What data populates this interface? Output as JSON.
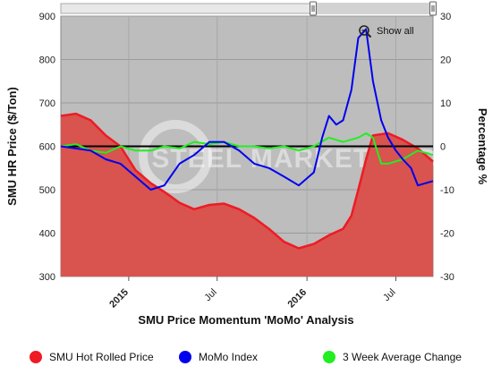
{
  "chart_data": {
    "type": "area",
    "title": "SMU Price Momentum 'MoMo' Analysis",
    "ylabel": "SMU HR Price ($/Ton)",
    "y2label": "Percentage %",
    "ylim": [
      300,
      900
    ],
    "y2lim": [
      -30,
      30
    ],
    "yticks": [
      "300",
      "400",
      "500",
      "600",
      "700",
      "800",
      "900"
    ],
    "y2ticks": [
      "-30",
      "-20",
      "-10",
      "0",
      "10",
      "20",
      "30"
    ],
    "x_range": [
      "2014-08-15",
      "2016-09-15"
    ],
    "xticks": [
      {
        "date": "2015-01-01",
        "label": "2015",
        "bold": true
      },
      {
        "date": "2015-07-01",
        "label": "Jul",
        "bold": false
      },
      {
        "date": "2016-01-01",
        "label": "2016",
        "bold": true
      },
      {
        "date": "2016-07-01",
        "label": "Jul",
        "bold": false
      }
    ],
    "grid": true,
    "legend_position": "bottom",
    "series": [
      {
        "name": "SMU Hot Rolled Price",
        "axis": "left",
        "color": "#ee1b24",
        "kind": "area",
        "x": [
          "2014-08-15",
          "2014-09-15",
          "2014-10-15",
          "2014-11-15",
          "2014-12-15",
          "2015-01-15",
          "2015-02-15",
          "2015-03-15",
          "2015-04-15",
          "2015-05-15",
          "2015-06-15",
          "2015-07-15",
          "2015-08-15",
          "2015-09-15",
          "2015-10-15",
          "2015-11-15",
          "2015-12-15",
          "2016-01-15",
          "2016-02-15",
          "2016-03-15",
          "2016-04-01",
          "2016-04-15",
          "2016-05-01",
          "2016-05-15",
          "2016-06-15",
          "2016-07-15",
          "2016-08-15",
          "2016-09-15"
        ],
        "values": [
          670,
          675,
          660,
          625,
          600,
          545,
          515,
          495,
          470,
          455,
          465,
          468,
          455,
          435,
          410,
          380,
          365,
          375,
          395,
          410,
          440,
          500,
          570,
          625,
          630,
          615,
          595,
          565
        ]
      },
      {
        "name": "MoMo Index",
        "axis": "right",
        "color": "#0000ee",
        "kind": "line",
        "x": [
          "2014-08-15",
          "2014-09-15",
          "2014-10-15",
          "2014-11-15",
          "2014-12-15",
          "2015-01-15",
          "2015-02-15",
          "2015-03-15",
          "2015-04-15",
          "2015-05-15",
          "2015-06-15",
          "2015-07-15",
          "2015-08-15",
          "2015-09-15",
          "2015-10-15",
          "2015-11-15",
          "2015-12-15",
          "2016-01-15",
          "2016-02-01",
          "2016-02-15",
          "2016-03-01",
          "2016-03-15",
          "2016-04-01",
          "2016-04-15",
          "2016-05-01",
          "2016-05-15",
          "2016-06-01",
          "2016-06-15",
          "2016-07-01",
          "2016-07-15",
          "2016-08-01",
          "2016-08-15",
          "2016-09-15"
        ],
        "values": [
          0,
          -0.5,
          -1,
          -3,
          -4,
          -7,
          -10,
          -9,
          -4,
          -2,
          1,
          1,
          -1,
          -4,
          -5,
          -7,
          -9,
          -6,
          2,
          7,
          5,
          6,
          13,
          25,
          27,
          15,
          6,
          2,
          -1,
          -3,
          -5,
          -9,
          -8
        ]
      },
      {
        "name": "3 Week Average Change",
        "axis": "right",
        "color": "#22ee22",
        "kind": "line",
        "x": [
          "2014-08-15",
          "2014-09-15",
          "2014-10-15",
          "2014-11-15",
          "2014-12-15",
          "2015-01-15",
          "2015-02-15",
          "2015-03-15",
          "2015-04-15",
          "2015-05-15",
          "2015-06-15",
          "2015-07-15",
          "2015-08-15",
          "2015-09-15",
          "2015-10-15",
          "2015-11-15",
          "2015-12-15",
          "2016-01-15",
          "2016-02-15",
          "2016-03-15",
          "2016-04-15",
          "2016-05-01",
          "2016-05-15",
          "2016-06-01",
          "2016-06-15",
          "2016-07-15",
          "2016-08-15",
          "2016-09-15"
        ],
        "values": [
          0,
          0.5,
          -1,
          -1.5,
          0,
          -1,
          -1,
          0,
          -0.5,
          1,
          0.5,
          1,
          0,
          0,
          -0.5,
          0,
          -1,
          0,
          2,
          1,
          2,
          3,
          2,
          -4,
          -4,
          -3,
          -1,
          -2
        ]
      }
    ]
  },
  "ui": {
    "show_all_label": "Show all",
    "watermark_text": "STEEL MARKET UPDATE"
  },
  "colors": {
    "plot_background": "#bdbdbd",
    "area_fill": "#d9534f",
    "zero_line": "#000000"
  }
}
